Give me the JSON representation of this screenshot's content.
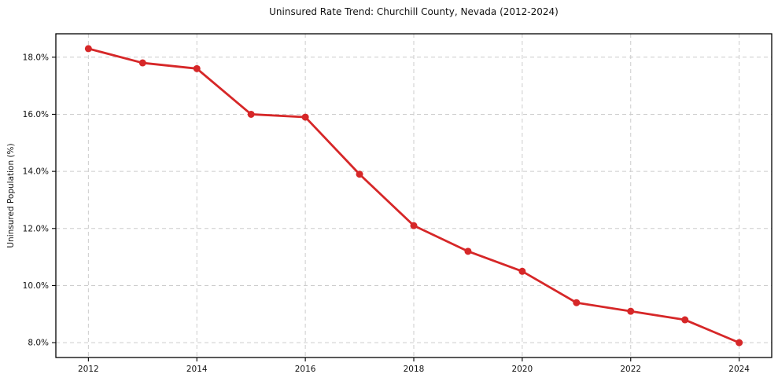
{
  "chart_data": {
    "type": "line",
    "title": "Uninsured Rate Trend: Churchill County, Nevada (2012-2024)",
    "xlabel": "",
    "ylabel": "Uninsured Population (%)",
    "x": [
      2012,
      2013,
      2014,
      2015,
      2016,
      2017,
      2018,
      2019,
      2020,
      2021,
      2022,
      2023,
      2024
    ],
    "values": [
      18.3,
      17.8,
      17.6,
      16.0,
      15.9,
      13.9,
      12.1,
      11.2,
      10.5,
      9.4,
      9.1,
      8.8,
      8.0
    ],
    "series_name": "Uninsured rate",
    "xticks": [
      2012,
      2014,
      2016,
      2018,
      2020,
      2022,
      2024
    ],
    "xtick_labels": [
      "2012",
      "2014",
      "2016",
      "2018",
      "2020",
      "2022",
      "2024"
    ],
    "yticks": [
      8,
      10,
      12,
      14,
      16,
      18
    ],
    "ytick_labels": [
      "8.0%",
      "10.0%",
      "12.0%",
      "14.0%",
      "16.0%",
      "18.0%"
    ],
    "xlim": [
      2011.4,
      2024.6
    ],
    "ylim": [
      7.48,
      18.82
    ],
    "grid": true,
    "grid_style": "dashed",
    "legend": false,
    "line_color": "#d62728",
    "marker_color": "#d62728",
    "grid_color": "#cccccc",
    "axis_color": "#000000",
    "background_color": "#ffffff"
  }
}
